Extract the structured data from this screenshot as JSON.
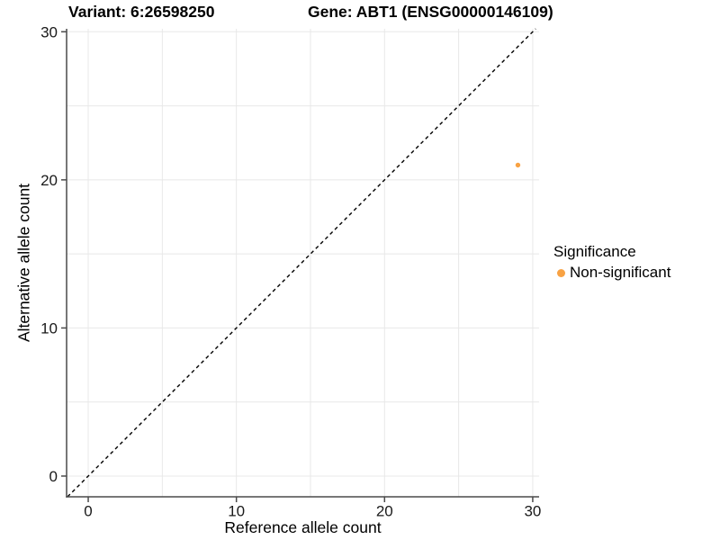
{
  "chart_data": {
    "type": "scatter",
    "title_left": "Variant: 6:26598250",
    "title_right": "Gene: ABT1 (ENSG00000146109)",
    "xlabel": "Reference allele count",
    "ylabel": "Alternative allele count",
    "xlim": [
      -1.46,
      30.43
    ],
    "ylim": [
      -1.4,
      30.2
    ],
    "xticks": [
      0,
      10,
      20,
      30
    ],
    "yticks": [
      0,
      10,
      20,
      30
    ],
    "grid_values": [
      0,
      5,
      10,
      15,
      20,
      25,
      30
    ],
    "grid": true,
    "legend_position": "right",
    "identity_line": {
      "slope": 1,
      "intercept": 0,
      "style": "dashed",
      "color": "#000000"
    },
    "series": [
      {
        "name": "Non-significant",
        "color": "#F8A243",
        "points": [
          {
            "x": 29,
            "y": 21
          }
        ]
      }
    ],
    "legend": {
      "title": "Significance",
      "items": [
        {
          "label": "Non-significant",
          "color": "#F8A243"
        }
      ]
    },
    "colors": {
      "grid": "#E8E8E8",
      "axis": "#4A4A4A",
      "tick_label": "#1A1A1A"
    }
  }
}
